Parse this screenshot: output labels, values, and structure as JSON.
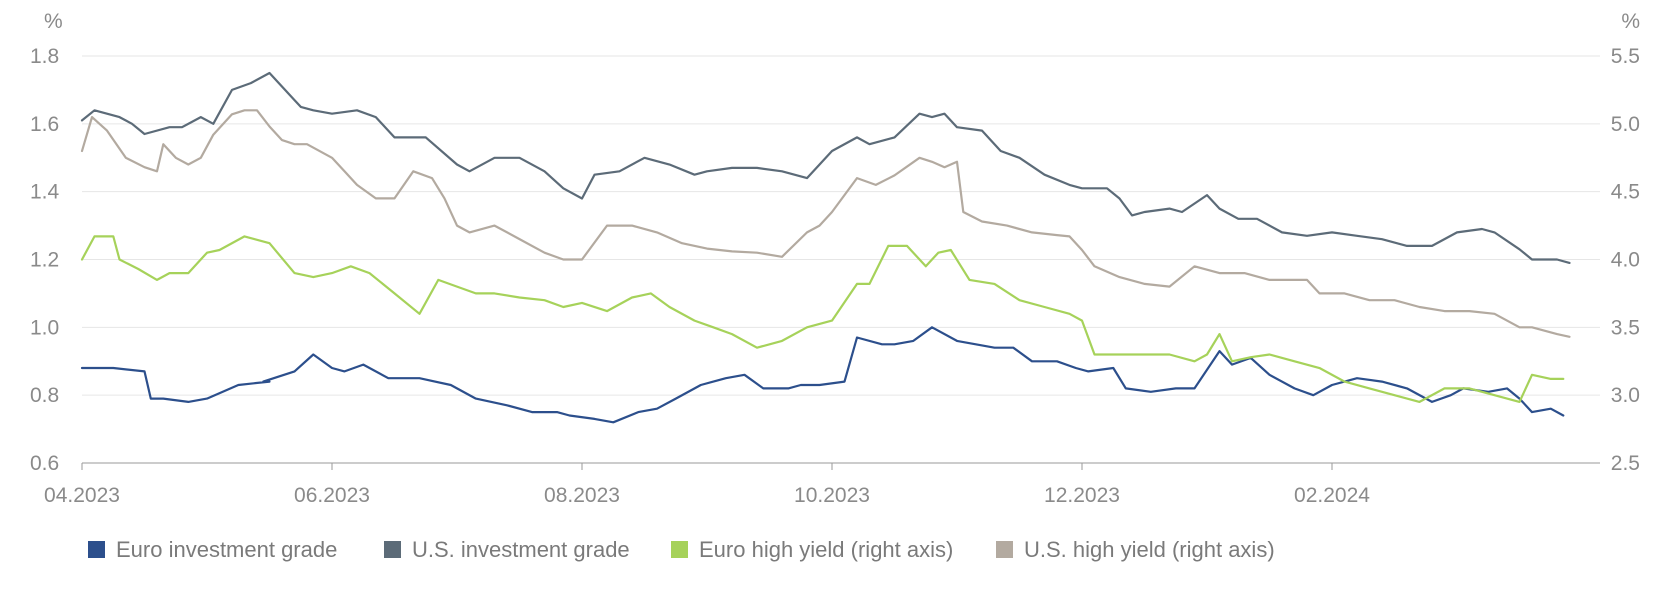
{
  "chart_data": {
    "type": "line",
    "left_axis": {
      "unit": "%",
      "ylim": [
        0.6,
        1.8
      ],
      "ticks": [
        "0.6",
        "0.8",
        "1.0",
        "1.2",
        "1.4",
        "1.6",
        "1.8"
      ]
    },
    "right_axis": {
      "unit": "%",
      "ylim": [
        2.5,
        5.5
      ],
      "ticks": [
        "2.5",
        "3.0",
        "3.5",
        "4.0",
        "4.5",
        "5.0",
        "5.5"
      ]
    },
    "x_axis": {
      "range": [
        0,
        12
      ],
      "ticks": [
        {
          "label": "04.2023",
          "x": 0
        },
        {
          "label": "06.2023",
          "x": 2
        },
        {
          "label": "08.2023",
          "x": 4
        },
        {
          "label": "10.2023",
          "x": 6
        },
        {
          "label": "12.2023",
          "x": 8
        },
        {
          "label": "02.2024",
          "x": 10
        }
      ]
    },
    "series": [
      {
        "name": "Euro investment grade",
        "axis": "left",
        "color": "#2c4f8c",
        "x": [
          0,
          0.25,
          0.5,
          0.55,
          0.65,
          0.85,
          1.0,
          1.25,
          1.5,
          1.45,
          1.7,
          1.85,
          2.0,
          2.1,
          2.25,
          2.45,
          2.7,
          2.95,
          3.15,
          3.4,
          3.6,
          3.8,
          3.9,
          4.1,
          4.25,
          4.45,
          4.6,
          4.75,
          4.95,
          5.15,
          5.3,
          5.45,
          5.5,
          5.65,
          5.75,
          5.9,
          6.1,
          6.2,
          6.4,
          6.5,
          6.65,
          6.8,
          7.0,
          7.15,
          7.3,
          7.45,
          7.6,
          7.8,
          7.95,
          8.05,
          8.25,
          8.35,
          8.55,
          8.75,
          8.9,
          9.1,
          9.2,
          9.35,
          9.5,
          9.7,
          9.85,
          10.0,
          10.2,
          10.4,
          10.6,
          10.8,
          10.95,
          11.05,
          11.25,
          11.4,
          11.5,
          11.6,
          11.75,
          11.85
        ],
        "values": [
          0.88,
          0.88,
          0.87,
          0.79,
          0.79,
          0.78,
          0.79,
          0.83,
          0.84,
          0.84,
          0.87,
          0.92,
          0.88,
          0.87,
          0.89,
          0.85,
          0.85,
          0.83,
          0.79,
          0.77,
          0.75,
          0.75,
          0.74,
          0.73,
          0.72,
          0.75,
          0.76,
          0.79,
          0.83,
          0.85,
          0.86,
          0.82,
          0.82,
          0.82,
          0.83,
          0.83,
          0.84,
          0.97,
          0.95,
          0.95,
          0.96,
          1.0,
          0.96,
          0.95,
          0.94,
          0.94,
          0.9,
          0.9,
          0.88,
          0.87,
          0.88,
          0.82,
          0.81,
          0.82,
          0.82,
          0.93,
          0.89,
          0.91,
          0.86,
          0.82,
          0.8,
          0.83,
          0.85,
          0.84,
          0.82,
          0.78,
          0.8,
          0.82,
          0.81,
          0.82,
          0.79,
          0.75,
          0.76,
          0.74
        ]
      },
      {
        "name": "U.S. investment grade",
        "axis": "left",
        "color": "#5c6b78",
        "x": [
          0,
          0.1,
          0.3,
          0.4,
          0.5,
          0.7,
          0.8,
          0.95,
          1.05,
          1.2,
          1.35,
          1.5,
          1.7,
          1.75,
          1.85,
          2.0,
          2.2,
          2.35,
          2.5,
          2.75,
          3.0,
          3.1,
          3.3,
          3.5,
          3.7,
          3.85,
          4.0,
          4.1,
          4.3,
          4.5,
          4.7,
          4.9,
          5.0,
          5.2,
          5.4,
          5.6,
          5.8,
          6.0,
          6.2,
          6.3,
          6.5,
          6.7,
          6.8,
          6.9,
          7.0,
          7.2,
          7.35,
          7.5,
          7.7,
          7.9,
          8.0,
          8.2,
          8.3,
          8.4,
          8.5,
          8.7,
          8.8,
          9.0,
          9.1,
          9.25,
          9.4,
          9.6,
          9.8,
          10.0,
          10.2,
          10.4,
          10.6,
          10.8,
          11.0,
          11.2,
          11.3,
          11.5,
          11.6,
          11.8,
          11.9
        ],
        "values": [
          1.61,
          1.64,
          1.62,
          1.6,
          1.57,
          1.59,
          1.59,
          1.62,
          1.6,
          1.7,
          1.72,
          1.75,
          1.67,
          1.65,
          1.64,
          1.63,
          1.64,
          1.62,
          1.56,
          1.56,
          1.48,
          1.46,
          1.5,
          1.5,
          1.46,
          1.41,
          1.38,
          1.45,
          1.46,
          1.5,
          1.48,
          1.45,
          1.46,
          1.47,
          1.47,
          1.46,
          1.44,
          1.52,
          1.56,
          1.54,
          1.56,
          1.63,
          1.62,
          1.63,
          1.59,
          1.58,
          1.52,
          1.5,
          1.45,
          1.42,
          1.41,
          1.41,
          1.38,
          1.33,
          1.34,
          1.35,
          1.34,
          1.39,
          1.35,
          1.32,
          1.32,
          1.28,
          1.27,
          1.28,
          1.27,
          1.26,
          1.24,
          1.24,
          1.28,
          1.29,
          1.28,
          1.23,
          1.2,
          1.2,
          1.19
        ]
      },
      {
        "name": "Euro high yield (right axis)",
        "axis": "right",
        "color": "#a6d25a",
        "x": [
          0,
          0.1,
          0.25,
          0.3,
          0.45,
          0.6,
          0.7,
          0.85,
          1.0,
          1.1,
          1.3,
          1.5,
          1.7,
          1.85,
          2.0,
          2.15,
          2.3,
          2.5,
          2.7,
          2.85,
          3.0,
          3.15,
          3.3,
          3.5,
          3.7,
          3.85,
          4.0,
          4.2,
          4.4,
          4.55,
          4.7,
          4.9,
          5.05,
          5.2,
          5.4,
          5.6,
          5.8,
          6.0,
          6.2,
          6.3,
          6.45,
          6.6,
          6.75,
          6.85,
          6.95,
          7.1,
          7.3,
          7.5,
          7.7,
          7.9,
          8.0,
          8.1,
          8.3,
          8.5,
          8.7,
          8.9,
          9.0,
          9.1,
          9.2,
          9.35,
          9.5,
          9.7,
          9.9,
          10.1,
          10.3,
          10.5,
          10.7,
          10.9,
          11.1,
          11.3,
          11.5,
          11.6,
          11.75,
          11.85
        ],
        "values": [
          4.0,
          4.17,
          4.17,
          4.0,
          3.93,
          3.85,
          3.9,
          3.9,
          4.05,
          4.07,
          4.17,
          4.12,
          3.9,
          3.87,
          3.9,
          3.95,
          3.9,
          3.75,
          3.6,
          3.85,
          3.8,
          3.75,
          3.75,
          3.72,
          3.7,
          3.65,
          3.68,
          3.62,
          3.72,
          3.75,
          3.65,
          3.55,
          3.5,
          3.45,
          3.35,
          3.4,
          3.5,
          3.55,
          3.82,
          3.82,
          4.1,
          4.1,
          3.95,
          4.05,
          4.07,
          3.85,
          3.82,
          3.7,
          3.65,
          3.6,
          3.55,
          3.3,
          3.3,
          3.3,
          3.3,
          3.25,
          3.3,
          3.45,
          3.25,
          3.28,
          3.3,
          3.25,
          3.2,
          3.1,
          3.05,
          3.0,
          2.95,
          3.05,
          3.05,
          3.0,
          2.95,
          3.15,
          3.12,
          3.12
        ]
      },
      {
        "name": "U.S. high yield (right axis)",
        "axis": "right",
        "color": "#b3aaa0",
        "x": [
          0,
          0.08,
          0.2,
          0.35,
          0.5,
          0.6,
          0.65,
          0.75,
          0.85,
          0.95,
          1.05,
          1.2,
          1.3,
          1.4,
          1.5,
          1.6,
          1.7,
          1.8,
          2.0,
          2.1,
          2.2,
          2.35,
          2.5,
          2.65,
          2.8,
          2.9,
          3.0,
          3.1,
          3.3,
          3.5,
          3.7,
          3.85,
          4.0,
          4.2,
          4.4,
          4.6,
          4.8,
          5.0,
          5.2,
          5.4,
          5.6,
          5.8,
          5.9,
          6.0,
          6.2,
          6.35,
          6.5,
          6.7,
          6.8,
          6.9,
          7.0,
          7.05,
          7.2,
          7.4,
          7.6,
          7.8,
          7.9,
          8.0,
          8.1,
          8.3,
          8.5,
          8.7,
          8.9,
          9.1,
          9.3,
          9.5,
          9.7,
          9.8,
          9.9,
          10.1,
          10.3,
          10.5,
          10.7,
          10.9,
          11.1,
          11.3,
          11.5,
          11.6,
          11.8,
          11.9
        ],
        "values": [
          4.8,
          5.05,
          4.95,
          4.75,
          4.68,
          4.65,
          4.85,
          4.75,
          4.7,
          4.75,
          4.92,
          5.07,
          5.1,
          5.1,
          4.98,
          4.88,
          4.85,
          4.85,
          4.75,
          4.65,
          4.55,
          4.45,
          4.45,
          4.65,
          4.6,
          4.45,
          4.25,
          4.2,
          4.25,
          4.15,
          4.05,
          4.0,
          4.0,
          4.25,
          4.25,
          4.2,
          4.12,
          4.08,
          4.06,
          4.05,
          4.02,
          4.2,
          4.25,
          4.35,
          4.6,
          4.55,
          4.62,
          4.75,
          4.72,
          4.68,
          4.72,
          4.35,
          4.28,
          4.25,
          4.2,
          4.18,
          4.17,
          4.07,
          3.95,
          3.87,
          3.82,
          3.8,
          3.95,
          3.9,
          3.9,
          3.85,
          3.85,
          3.85,
          3.75,
          3.75,
          3.7,
          3.7,
          3.65,
          3.62,
          3.62,
          3.6,
          3.5,
          3.5,
          3.45,
          3.43
        ]
      }
    ],
    "legend": [
      {
        "label": "Euro investment grade",
        "color": "#2c4f8c"
      },
      {
        "label": "U.S. investment grade",
        "color": "#5c6b78"
      },
      {
        "label": "Euro high yield (right axis)",
        "color": "#a6d25a"
      },
      {
        "label": "U.S. high yield (right axis)",
        "color": "#b3aaa0"
      }
    ]
  }
}
